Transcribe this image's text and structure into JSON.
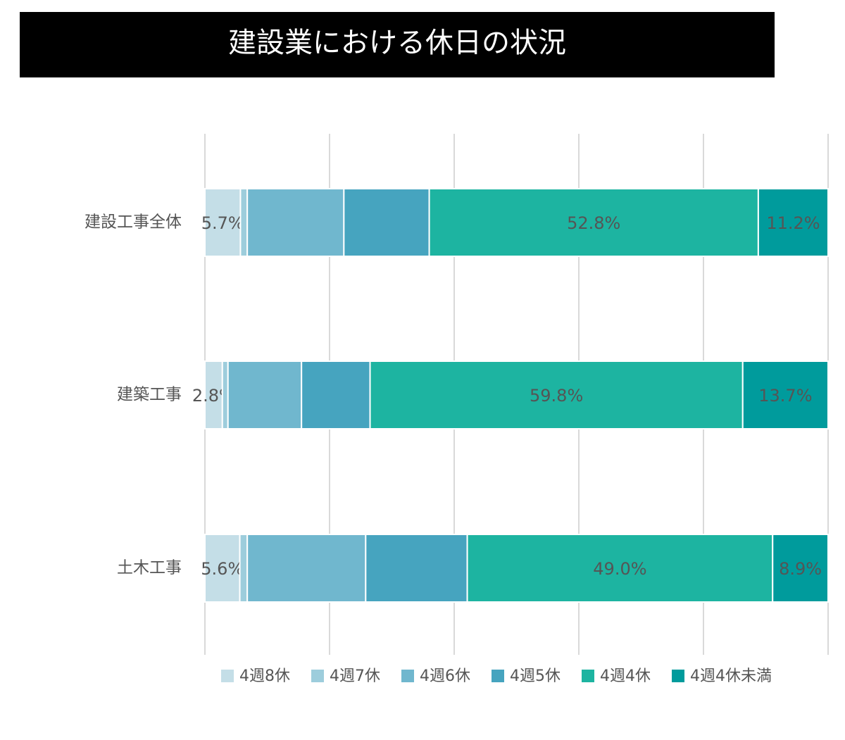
{
  "chart_data": {
    "type": "stacked-barh",
    "title": "建設業における休日の状況",
    "categories": [
      "建設工事全体",
      "建築工事",
      "土木工事"
    ],
    "series": [
      {
        "name": "4週8休",
        "color": "#c4dee7",
        "values": [
          5.7,
          2.8,
          5.6
        ],
        "value_labels": [
          "5.7%",
          "2.8%",
          "5.6%"
        ]
      },
      {
        "name": "4週7休",
        "color": "#9dcddc",
        "values": [
          1.1,
          0.9,
          1.2
        ]
      },
      {
        "name": "4週6休",
        "color": "#70b7ce",
        "values": [
          15.5,
          11.8,
          19.0
        ]
      },
      {
        "name": "4週5休",
        "color": "#46a4bf",
        "values": [
          13.7,
          11.0,
          16.3
        ]
      },
      {
        "name": "4週4休",
        "color": "#1db4a1",
        "values": [
          52.8,
          59.8,
          49.0
        ],
        "value_labels": [
          "52.8%",
          "59.8%",
          "49.0%"
        ]
      },
      {
        "name": "4週4休未満",
        "color": "#009b9c",
        "values": [
          11.2,
          13.7,
          8.9
        ],
        "value_labels": [
          "11.2%",
          "13.7%",
          "8.9%"
        ]
      }
    ],
    "xlim": [
      0,
      100
    ],
    "xticks": [
      0,
      20,
      40,
      60,
      80,
      100
    ],
    "grid": true,
    "legend": "bottom"
  }
}
